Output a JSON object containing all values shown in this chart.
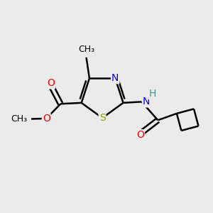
{
  "bg_color": "#ebebeb",
  "bond_color": "#000000",
  "bond_width": 1.8,
  "atom_colors": {
    "S": "#999900",
    "N": "#0000ee",
    "O": "#ff0000",
    "H": "#4a9090",
    "C": "#000000"
  },
  "font_size_atom": 10,
  "fig_size": [
    3.0,
    3.0
  ],
  "dpi": 100
}
